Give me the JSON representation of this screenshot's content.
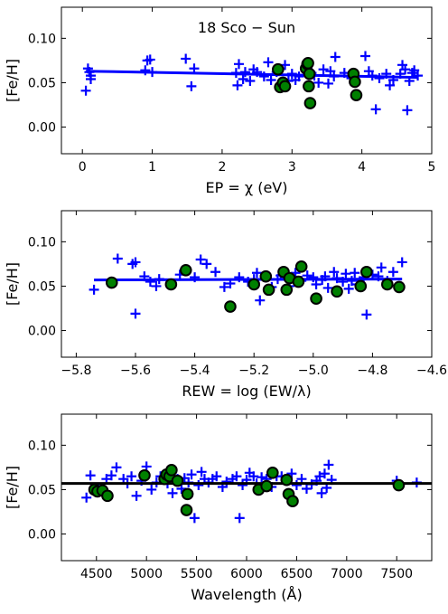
{
  "chart_data": [
    {
      "type": "scatter",
      "title": "18 Sco − Sun",
      "xlabel": "EP = χ (eV)",
      "ylabel": "[Fe/H]",
      "xlim": [
        -0.3,
        5.0
      ],
      "ylim": [
        -0.03,
        0.135
      ],
      "xticks": [
        "0",
        "1",
        "2",
        "3",
        "4",
        "5"
      ],
      "yticks": [
        "0.00",
        "0.05",
        "0.10"
      ],
      "xtick_values": [
        0,
        1,
        2,
        3,
        4,
        5
      ],
      "ytick_values": [
        0.0,
        0.05,
        0.1
      ],
      "fit": {
        "x": [
          0.05,
          4.8
        ],
        "y": [
          0.063,
          0.056
        ]
      },
      "series": [
        {
          "marker": "plus",
          "color": "#0000ff",
          "points": [
            [
              0.05,
              0.041
            ],
            [
              0.08,
              0.066
            ],
            [
              0.1,
              0.062
            ],
            [
              0.12,
              0.058
            ],
            [
              0.12,
              0.054
            ],
            [
              0.9,
              0.064
            ],
            [
              0.93,
              0.075
            ],
            [
              0.97,
              0.076
            ],
            [
              1.0,
              0.062
            ],
            [
              1.48,
              0.077
            ],
            [
              1.56,
              0.046
            ],
            [
              1.6,
              0.066
            ],
            [
              2.2,
              0.061
            ],
            [
              2.22,
              0.047
            ],
            [
              2.24,
              0.071
            ],
            [
              2.3,
              0.054
            ],
            [
              2.33,
              0.062
            ],
            [
              2.4,
              0.052
            ],
            [
              2.45,
              0.065
            ],
            [
              2.5,
              0.062
            ],
            [
              2.6,
              0.057
            ],
            [
              2.66,
              0.073
            ],
            [
              2.7,
              0.053
            ],
            [
              2.78,
              0.062
            ],
            [
              2.9,
              0.07
            ],
            [
              2.95,
              0.052
            ],
            [
              3.0,
              0.06
            ],
            [
              3.05,
              0.053
            ],
            [
              3.1,
              0.057
            ],
            [
              3.28,
              0.061
            ],
            [
              3.32,
              0.058
            ],
            [
              3.38,
              0.05
            ],
            [
              3.45,
              0.065
            ],
            [
              3.52,
              0.049
            ],
            [
              3.55,
              0.063
            ],
            [
              3.6,
              0.057
            ],
            [
              3.62,
              0.079
            ],
            [
              3.75,
              0.061
            ],
            [
              3.85,
              0.055
            ],
            [
              4.05,
              0.08
            ],
            [
              4.1,
              0.063
            ],
            [
              4.15,
              0.058
            ],
            [
              4.2,
              0.02
            ],
            [
              4.25,
              0.055
            ],
            [
              4.35,
              0.06
            ],
            [
              4.4,
              0.047
            ],
            [
              4.45,
              0.053
            ],
            [
              4.55,
              0.06
            ],
            [
              4.58,
              0.07
            ],
            [
              4.62,
              0.065
            ],
            [
              4.65,
              0.019
            ],
            [
              4.68,
              0.052
            ],
            [
              4.72,
              0.061
            ],
            [
              4.75,
              0.064
            ],
            [
              4.8,
              0.058
            ]
          ]
        },
        {
          "marker": "circle",
          "color": "#008000",
          "points": [
            [
              2.8,
              0.065
            ],
            [
              2.83,
              0.045
            ],
            [
              2.87,
              0.05
            ],
            [
              2.9,
              0.046
            ],
            [
              3.2,
              0.066
            ],
            [
              3.22,
              0.071
            ],
            [
              3.23,
              0.072
            ],
            [
              3.24,
              0.046
            ],
            [
              3.25,
              0.06
            ],
            [
              3.26,
              0.027
            ],
            [
              3.88,
              0.06
            ],
            [
              3.9,
              0.051
            ],
            [
              3.92,
              0.036
            ]
          ]
        }
      ]
    },
    {
      "type": "scatter",
      "title": "",
      "xlabel": "REW = log (EW/λ)",
      "ylabel": "[Fe/H]",
      "xlim": [
        -5.85,
        -4.6
      ],
      "ylim": [
        -0.03,
        0.135
      ],
      "xticks": [
        "−5.8",
        "−5.6",
        "−5.4",
        "−5.2",
        "−5.0",
        "−4.8",
        "−4.6"
      ],
      "yticks": [
        "0.00",
        "0.05",
        "0.10"
      ],
      "xtick_values": [
        -5.8,
        -5.6,
        -5.4,
        -5.2,
        -5.0,
        -4.8,
        -4.6
      ],
      "ytick_values": [
        0.0,
        0.05,
        0.1
      ],
      "fit": {
        "x": [
          -5.74,
          -4.7
        ],
        "y": [
          0.057,
          0.058
        ]
      },
      "series": [
        {
          "marker": "plus",
          "color": "#0000ff",
          "points": [
            [
              -5.74,
              0.046
            ],
            [
              -5.66,
              0.081
            ],
            [
              -5.61,
              0.075
            ],
            [
              -5.6,
              0.019
            ],
            [
              -5.6,
              0.077
            ],
            [
              -5.57,
              0.061
            ],
            [
              -5.55,
              0.055
            ],
            [
              -5.53,
              0.05
            ],
            [
              -5.52,
              0.058
            ],
            [
              -5.45,
              0.063
            ],
            [
              -5.4,
              0.06
            ],
            [
              -5.38,
              0.08
            ],
            [
              -5.36,
              0.075
            ],
            [
              -5.33,
              0.066
            ],
            [
              -5.3,
              0.049
            ],
            [
              -5.28,
              0.053
            ],
            [
              -5.25,
              0.06
            ],
            [
              -5.22,
              0.055
            ],
            [
              -5.2,
              0.058
            ],
            [
              -5.19,
              0.065
            ],
            [
              -5.18,
              0.034
            ],
            [
              -5.16,
              0.06
            ],
            [
              -5.14,
              0.049
            ],
            [
              -5.12,
              0.058
            ],
            [
              -5.11,
              0.062
            ],
            [
              -5.08,
              0.05
            ],
            [
              -5.06,
              0.065
            ],
            [
              -5.04,
              0.056
            ],
            [
              -5.02,
              0.062
            ],
            [
              -5.0,
              0.06
            ],
            [
              -4.99,
              0.052
            ],
            [
              -4.97,
              0.057
            ],
            [
              -4.96,
              0.061
            ],
            [
              -4.95,
              0.048
            ],
            [
              -4.93,
              0.066
            ],
            [
              -4.92,
              0.059
            ],
            [
              -4.9,
              0.055
            ],
            [
              -4.89,
              0.064
            ],
            [
              -4.88,
              0.047
            ],
            [
              -4.87,
              0.056
            ],
            [
              -4.86,
              0.065
            ],
            [
              -4.85,
              0.052
            ],
            [
              -4.83,
              0.06
            ],
            [
              -4.82,
              0.018
            ],
            [
              -4.8,
              0.063
            ],
            [
              -4.78,
              0.061
            ],
            [
              -4.77,
              0.071
            ],
            [
              -4.75,
              0.056
            ],
            [
              -4.73,
              0.066
            ],
            [
              -4.7,
              0.077
            ]
          ]
        },
        {
          "marker": "circle",
          "color": "#008000",
          "points": [
            [
              -5.68,
              0.054
            ],
            [
              -5.48,
              0.052
            ],
            [
              -5.43,
              0.068
            ],
            [
              -5.28,
              0.027
            ],
            [
              -5.2,
              0.052
            ],
            [
              -5.16,
              0.061
            ],
            [
              -5.15,
              0.046
            ],
            [
              -5.1,
              0.066
            ],
            [
              -5.09,
              0.046
            ],
            [
              -5.08,
              0.059
            ],
            [
              -5.05,
              0.055
            ],
            [
              -5.04,
              0.072
            ],
            [
              -4.99,
              0.036
            ],
            [
              -4.92,
              0.044
            ],
            [
              -4.84,
              0.05
            ],
            [
              -4.82,
              0.066
            ],
            [
              -4.75,
              0.052
            ],
            [
              -4.71,
              0.049
            ]
          ]
        }
      ]
    },
    {
      "type": "scatter",
      "title": "",
      "xlabel": "Wavelength (Å)",
      "ylabel": "[Fe/H]",
      "xlim": [
        4150,
        7850
      ],
      "ylim": [
        -0.03,
        0.135
      ],
      "xticks": [
        "4500",
        "5000",
        "5500",
        "6000",
        "6500",
        "7000",
        "7500"
      ],
      "yticks": [
        "0.00",
        "0.05",
        "0.10"
      ],
      "xtick_values": [
        4500,
        5000,
        5500,
        6000,
        6500,
        7000,
        7500
      ],
      "ytick_values": [
        0.0,
        0.05,
        0.1
      ],
      "fit": {
        "x": [
          4150,
          7850
        ],
        "y": [
          0.057,
          0.057
        ]
      },
      "series": [
        {
          "marker": "plus",
          "color": "#0000ff",
          "points": [
            [
              4400,
              0.041
            ],
            [
              4440,
              0.066
            ],
            [
              4520,
              0.052
            ],
            [
              4600,
              0.062
            ],
            [
              4650,
              0.066
            ],
            [
              4700,
              0.075
            ],
            [
              4770,
              0.062
            ],
            [
              4810,
              0.057
            ],
            [
              4850,
              0.065
            ],
            [
              4900,
              0.043
            ],
            [
              4950,
              0.06
            ],
            [
              5000,
              0.076
            ],
            [
              5050,
              0.05
            ],
            [
              5100,
              0.058
            ],
            [
              5140,
              0.065
            ],
            [
              5180,
              0.062
            ],
            [
              5210,
              0.057
            ],
            [
              5260,
              0.046
            ],
            [
              5310,
              0.062
            ],
            [
              5350,
              0.051
            ],
            [
              5380,
              0.063
            ],
            [
              5420,
              0.058
            ],
            [
              5450,
              0.067
            ],
            [
              5480,
              0.018
            ],
            [
              5520,
              0.055
            ],
            [
              5550,
              0.07
            ],
            [
              5580,
              0.062
            ],
            [
              5620,
              0.058
            ],
            [
              5660,
              0.062
            ],
            [
              5700,
              0.065
            ],
            [
              5760,
              0.053
            ],
            [
              5800,
              0.059
            ],
            [
              5860,
              0.062
            ],
            [
              5900,
              0.065
            ],
            [
              5930,
              0.018
            ],
            [
              5960,
              0.055
            ],
            [
              6000,
              0.061
            ],
            [
              6030,
              0.069
            ],
            [
              6070,
              0.065
            ],
            [
              6100,
              0.057
            ],
            [
              6150,
              0.064
            ],
            [
              6200,
              0.062
            ],
            [
              6250,
              0.053
            ],
            [
              6300,
              0.065
            ],
            [
              6350,
              0.065
            ],
            [
              6400,
              0.06
            ],
            [
              6450,
              0.068
            ],
            [
              6500,
              0.055
            ],
            [
              6550,
              0.062
            ],
            [
              6600,
              0.051
            ],
            [
              6650,
              0.056
            ],
            [
              6700,
              0.06
            ],
            [
              6730,
              0.065
            ],
            [
              6750,
              0.046
            ],
            [
              6780,
              0.068
            ],
            [
              6800,
              0.052
            ],
            [
              6820,
              0.078
            ],
            [
              6850,
              0.061
            ],
            [
              7500,
              0.06
            ],
            [
              7700,
              0.058
            ]
          ]
        },
        {
          "marker": "circle",
          "color": "#008000",
          "points": [
            [
              4480,
              0.05
            ],
            [
              4510,
              0.048
            ],
            [
              4560,
              0.049
            ],
            [
              4610,
              0.043
            ],
            [
              4980,
              0.066
            ],
            [
              5180,
              0.062
            ],
            [
              5200,
              0.067
            ],
            [
              5230,
              0.065
            ],
            [
              5250,
              0.072
            ],
            [
              5310,
              0.06
            ],
            [
              5400,
              0.027
            ],
            [
              5410,
              0.045
            ],
            [
              6120,
              0.05
            ],
            [
              6200,
              0.054
            ],
            [
              6260,
              0.069
            ],
            [
              6400,
              0.061
            ],
            [
              6420,
              0.045
            ],
            [
              6460,
              0.037
            ],
            [
              7520,
              0.055
            ]
          ]
        }
      ]
    }
  ]
}
